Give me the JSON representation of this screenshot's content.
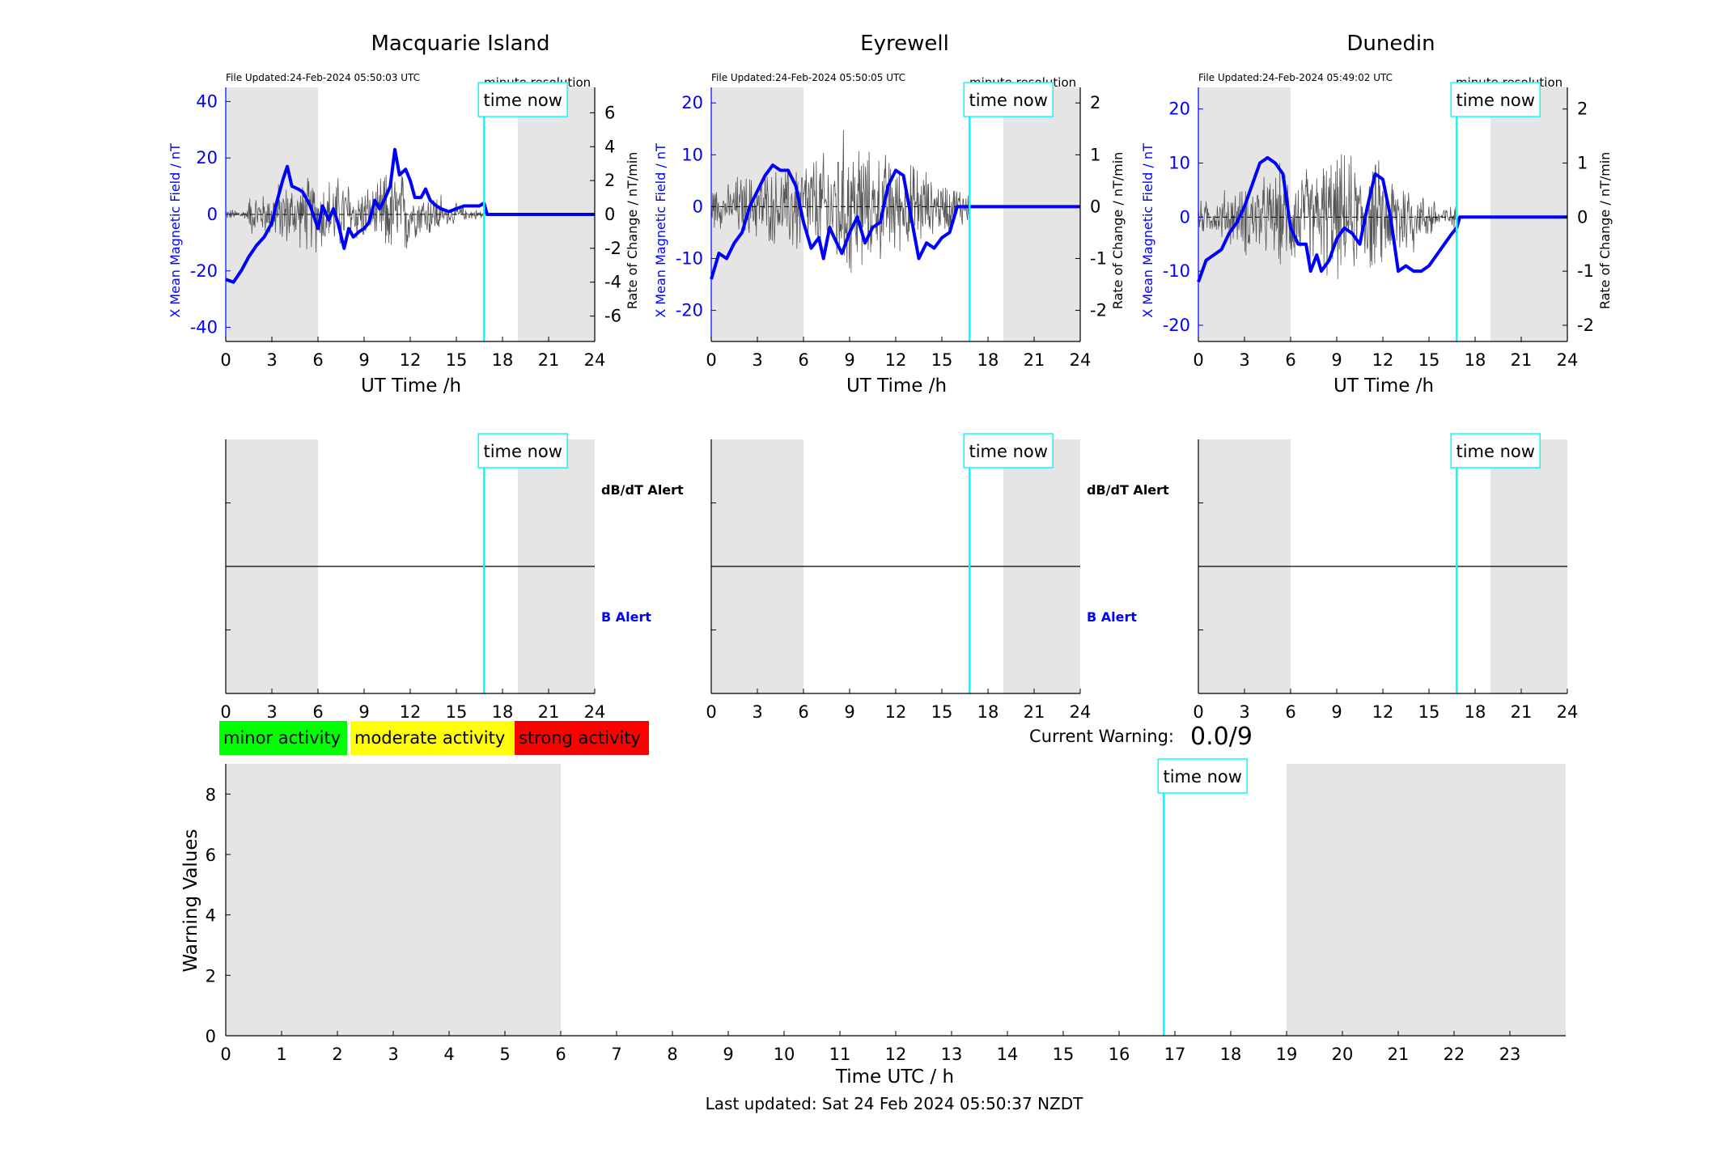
{
  "chart_data": [
    {
      "type": "line",
      "title": "Macquarie Island",
      "file_updated": "File Updated:24-Feb-2024 05:50:03 UTC",
      "resolution": "minute resolution",
      "time_now_label": "time now",
      "xlabel": "UT Time /h",
      "ylabel_left": "X Mean Magnetic Field / nT",
      "ylabel_right": "Rate of Change / nT/min",
      "xlim": [
        0,
        24
      ],
      "xticks": [
        0,
        3,
        6,
        9,
        12,
        15,
        18,
        21,
        24
      ],
      "ylim_left": [
        -45,
        45
      ],
      "yticks_left": [
        -40,
        -20,
        0,
        20,
        40
      ],
      "ylim_right": [
        -7.5,
        7.5
      ],
      "yticks_right": [
        -6,
        -4,
        -2,
        0,
        2,
        4,
        6
      ],
      "night_shading_hours": [
        [
          0,
          6
        ],
        [
          19,
          24
        ]
      ],
      "time_now_hour": 16.8,
      "series": [
        {
          "color": "#0000ff",
          "x": [
            0,
            0.5,
            1,
            1.5,
            2,
            2.5,
            3,
            3.3,
            3.7,
            4,
            4.3,
            4.7,
            5,
            5.5,
            6,
            6.3,
            6.7,
            7,
            7.3,
            7.7,
            8,
            8.3,
            8.7,
            9,
            9.3,
            9.7,
            10,
            10.3,
            10.7,
            11,
            11.3,
            11.7,
            12,
            12.3,
            12.7,
            13,
            13.3,
            13.7,
            14,
            14.5,
            15,
            15.5,
            16,
            16.5,
            16.8,
            17,
            24
          ],
          "y": [
            -23,
            -24,
            -20,
            -15,
            -11,
            -8,
            -3,
            4,
            12,
            17,
            10,
            9,
            8,
            3,
            -5,
            3,
            -2,
            2,
            -3,
            -12,
            -5,
            -8,
            -6,
            -5,
            -3,
            5,
            2,
            5,
            10,
            23,
            14,
            16,
            12,
            6,
            6,
            9,
            5,
            3,
            2,
            1,
            2,
            3,
            3,
            3,
            4,
            0,
            0
          ]
        },
        {
          "color": "#555555",
          "noise_amplitude_nT_per_min": [
            0.3,
            1.2,
            1.8,
            2.2,
            1.6,
            2.5,
            1.3,
            0.6,
            0.3,
            0.3
          ],
          "noise_segment_hours": [
            [
              0,
              1.5
            ],
            [
              1.5,
              3
            ],
            [
              3,
              5
            ],
            [
              5,
              8
            ],
            [
              8,
              10
            ],
            [
              10,
              12
            ],
            [
              12,
              14
            ],
            [
              14,
              15.5
            ],
            [
              15.5,
              16.8
            ],
            [
              16.8,
              17
            ]
          ],
          "active_until_hour": 16.8
        }
      ]
    },
    {
      "type": "line",
      "title": "Eyrewell",
      "file_updated": "File Updated:24-Feb-2024 05:50:05 UTC",
      "resolution": "minute resolution",
      "time_now_label": "time now",
      "xlabel": "UT Time /h",
      "ylabel_left": "X Mean Magnetic Field / nT",
      "ylabel_right": "Rate of Change / nT/min",
      "xlim": [
        0,
        24
      ],
      "xticks": [
        0,
        3,
        6,
        9,
        12,
        15,
        18,
        21,
        24
      ],
      "ylim_left": [
        -26,
        23
      ],
      "yticks_left": [
        -20,
        -10,
        0,
        10,
        20
      ],
      "ylim_right": [
        -2.6,
        2.3
      ],
      "yticks_right": [
        -2,
        -1,
        0,
        1,
        2
      ],
      "night_shading_hours": [
        [
          0,
          6
        ],
        [
          19,
          24
        ]
      ],
      "time_now_hour": 16.8,
      "series": [
        {
          "color": "#0000ff",
          "x": [
            0,
            0.5,
            1,
            1.5,
            2,
            2.5,
            3,
            3.5,
            4,
            4.5,
            5,
            5.5,
            6,
            6.5,
            7,
            7.3,
            7.7,
            8,
            8.5,
            9,
            9.5,
            10,
            10.5,
            11,
            11.5,
            12,
            12.5,
            13,
            13.5,
            14,
            14.5,
            15,
            15.5,
            16,
            16.8,
            17,
            24
          ],
          "y": [
            -14,
            -9,
            -10,
            -7,
            -5,
            0,
            3,
            6,
            8,
            7,
            7,
            4,
            -3,
            -8,
            -6,
            -10,
            -4,
            -6,
            -9,
            -5,
            -2,
            -7,
            -4,
            -3,
            4,
            7,
            6,
            -2,
            -10,
            -7,
            -8,
            -6,
            -5,
            0,
            0,
            0,
            0
          ]
        },
        {
          "color": "#555555",
          "noise_amplitude_nT_per_min": [
            0.4,
            0.6,
            0.7,
            1.0,
            1.4,
            1.0,
            0.8,
            0.5,
            0.4,
            0.1
          ],
          "noise_segment_hours": [
            [
              0,
              1.5
            ],
            [
              1.5,
              3
            ],
            [
              3,
              5
            ],
            [
              5,
              8
            ],
            [
              8,
              10
            ],
            [
              10,
              12
            ],
            [
              12,
              14
            ],
            [
              14,
              15.5
            ],
            [
              15.5,
              16.8
            ],
            [
              16.8,
              17
            ]
          ],
          "active_until_hour": 16.8
        }
      ]
    },
    {
      "type": "line",
      "title": "Dunedin",
      "file_updated": "File Updated:24-Feb-2024 05:49:02 UTC",
      "resolution": "minute resolution",
      "time_now_label": "time now",
      "xlabel": "UT Time /h",
      "ylabel_left": "X Mean Magnetic Field / nT",
      "ylabel_right": "Rate of Change / nT/min",
      "xlim": [
        0,
        24
      ],
      "xticks": [
        0,
        3,
        6,
        9,
        12,
        15,
        18,
        21,
        24
      ],
      "ylim_left": [
        -23,
        24
      ],
      "yticks_left": [
        -20,
        -10,
        0,
        10,
        20
      ],
      "ylim_right": [
        -2.3,
        2.4
      ],
      "yticks_right": [
        -2,
        -1,
        0,
        1,
        2
      ],
      "night_shading_hours": [
        [
          0,
          6
        ],
        [
          19,
          24
        ]
      ],
      "time_now_hour": 16.8,
      "series": [
        {
          "color": "#0000ff",
          "x": [
            0,
            0.5,
            1,
            1.5,
            2,
            2.5,
            3,
            3.5,
            4,
            4.5,
            5,
            5.5,
            6,
            6.5,
            7,
            7.3,
            7.7,
            8,
            8.5,
            9,
            9.5,
            10,
            10.5,
            11,
            11.5,
            12,
            12.5,
            13,
            13.5,
            14,
            14.5,
            15,
            15.5,
            16,
            16.5,
            16.8,
            17,
            24
          ],
          "y": [
            -12,
            -8,
            -7,
            -6,
            -3,
            -1,
            2,
            6,
            10,
            11,
            10,
            8,
            -2,
            -5,
            -5,
            -10,
            -7,
            -10,
            -8,
            -4,
            -2,
            -3,
            -5,
            2,
            8,
            7,
            0,
            -10,
            -9,
            -10,
            -10,
            -9,
            -7,
            -5,
            -3,
            -2,
            0,
            0
          ]
        },
        {
          "color": "#555555",
          "noise_amplitude_nT_per_min": [
            0.3,
            0.5,
            0.7,
            0.9,
            1.1,
            1.0,
            0.8,
            0.4,
            0.2,
            0.1
          ],
          "noise_segment_hours": [
            [
              0,
              1.5
            ],
            [
              1.5,
              3
            ],
            [
              3,
              5
            ],
            [
              5,
              8
            ],
            [
              8,
              10
            ],
            [
              10,
              12
            ],
            [
              12,
              14
            ],
            [
              14,
              15.5
            ],
            [
              15.5,
              16.8
            ],
            [
              16.8,
              17
            ]
          ],
          "active_until_hour": 16.8
        }
      ]
    },
    {
      "type": "line",
      "title": "",
      "time_now_label": "time now",
      "alert_labels": [
        "dB/dT Alert",
        "B Alert"
      ],
      "alert_label_colors": [
        "#000000",
        "#0000ff"
      ],
      "xlim": [
        0,
        24
      ],
      "xticks": [
        0,
        3,
        6,
        9,
        12,
        15,
        18,
        21,
        24
      ],
      "night_shading_hours": [
        [
          0,
          6
        ],
        [
          19,
          24
        ]
      ],
      "time_now_hour": 16.8,
      "series": []
    },
    {
      "type": "line",
      "title": "",
      "time_now_label": "time now",
      "alert_labels": [
        "dB/dT Alert",
        "B Alert"
      ],
      "alert_label_colors": [
        "#000000",
        "#0000ff"
      ],
      "xlim": [
        0,
        24
      ],
      "xticks": [
        0,
        3,
        6,
        9,
        12,
        15,
        18,
        21,
        24
      ],
      "night_shading_hours": [
        [
          0,
          6
        ],
        [
          19,
          24
        ]
      ],
      "time_now_hour": 16.8,
      "series": []
    },
    {
      "type": "line",
      "title": "",
      "time_now_label": "time now",
      "alert_labels": [],
      "xlim": [
        0,
        24
      ],
      "xticks": [
        0,
        3,
        6,
        9,
        12,
        15,
        18,
        21,
        24
      ],
      "night_shading_hours": [
        [
          0,
          6
        ],
        [
          19,
          24
        ]
      ],
      "time_now_hour": 16.8,
      "series": []
    },
    {
      "type": "bar",
      "title": "",
      "xlabel": "Time UTC / h",
      "ylabel": "Warning Values",
      "xlim": [
        0,
        24
      ],
      "xticks": [
        0,
        1,
        2,
        3,
        4,
        5,
        6,
        7,
        8,
        9,
        10,
        11,
        12,
        13,
        14,
        15,
        16,
        17,
        18,
        19,
        20,
        21,
        22,
        23
      ],
      "ylim": [
        0,
        9
      ],
      "yticks": [
        0,
        2,
        4,
        6,
        8
      ],
      "night_shading_hours": [
        [
          0,
          6
        ],
        [
          19,
          24
        ]
      ],
      "time_now_hour": 16.8,
      "time_now_label": "time now",
      "series": [],
      "legend": [
        {
          "label": "minor activity",
          "color": "#00ff00"
        },
        {
          "label": "moderate activity",
          "color": "#ffff00"
        },
        {
          "label": "strong activity",
          "color": "#ff0000"
        }
      ]
    }
  ],
  "current_warning": {
    "label": "Current Warning:",
    "value": "0.0/9"
  },
  "footer": {
    "last_updated": "Last updated: Sat 24 Feb 2024 05:50:37 NZDT"
  },
  "colors": {
    "night_shade": "#e5e5e5",
    "time_now": "#00ffff",
    "field": "#0000ff",
    "rate": "#555555"
  }
}
